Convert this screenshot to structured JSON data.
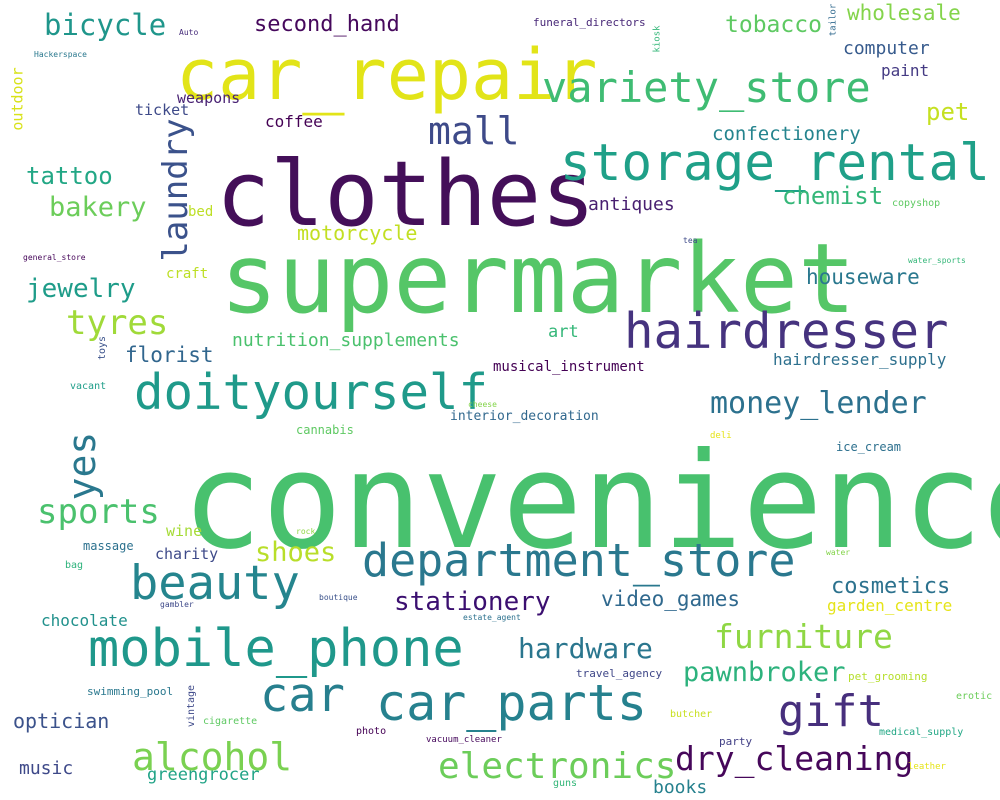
{
  "words": [
    {
      "text": "convenience",
      "color": "#48c16e",
      "rot": 0
    },
    {
      "text": "supermarket",
      "color": "#55c667",
      "rot": 0
    },
    {
      "text": "clothes",
      "color": "#440f59",
      "rot": 0
    },
    {
      "text": "car_repair",
      "color": "#e2e418",
      "rot": 0
    },
    {
      "text": "storage_rental",
      "color": "#1fa088",
      "rot": 0
    },
    {
      "text": "hairdresser",
      "color": "#46337f",
      "rot": 0
    },
    {
      "text": "doityourself",
      "color": "#1f9a8a",
      "rot": 0
    },
    {
      "text": "variety_store",
      "color": "#3fbc73",
      "rot": 0
    },
    {
      "text": "mobile_phone",
      "color": "#1f988b",
      "rot": 0
    },
    {
      "text": "department_store",
      "color": "#2a788e",
      "rot": 0
    },
    {
      "text": "car_parts",
      "color": "#26818e",
      "rot": 0
    },
    {
      "text": "beauty",
      "color": "#25858e",
      "rot": 0
    },
    {
      "text": "car",
      "color": "#277f8e",
      "rot": 0
    },
    {
      "text": "gift",
      "color": "#472f7d",
      "rot": 0
    },
    {
      "text": "mall",
      "color": "#3e4a89",
      "rot": 0
    },
    {
      "text": "alcohol",
      "color": "#7ad151",
      "rot": 0
    },
    {
      "text": "electronics",
      "color": "#6ccd5a",
      "rot": 0
    },
    {
      "text": "dry_cleaning",
      "color": "#46075a",
      "rot": 0
    },
    {
      "text": "furniture",
      "color": "#8fd744",
      "rot": 0
    },
    {
      "text": "money_lender",
      "color": "#2c718e",
      "rot": 0
    },
    {
      "text": "yes",
      "color": "#2a788e",
      "rot": -90
    },
    {
      "text": "laundry",
      "color": "#3b528b",
      "rot": -90
    },
    {
      "text": "sports",
      "color": "#4ac16d",
      "rot": 0
    },
    {
      "text": "tyres",
      "color": "#a0da39",
      "rot": 0
    },
    {
      "text": "bicycle",
      "color": "#1f968b",
      "rot": 0
    },
    {
      "text": "hardware",
      "color": "#2a768e",
      "rot": 0
    },
    {
      "text": "pawnbroker",
      "color": "#2db27d",
      "rot": 0
    },
    {
      "text": "stationery",
      "color": "#3b0f70",
      "rot": 0
    },
    {
      "text": "shoes",
      "color": "#b8de29",
      "rot": 0
    },
    {
      "text": "bakery",
      "color": "#6ccd5a",
      "rot": 0
    },
    {
      "text": "jewelry",
      "color": "#1e9c89",
      "rot": 0
    },
    {
      "text": "video_games",
      "color": "#30698e",
      "rot": 0
    },
    {
      "text": "cosmetics",
      "color": "#2c728e",
      "rot": 0
    },
    {
      "text": "chemist",
      "color": "#35b779",
      "rot": 0
    },
    {
      "text": "tattoo",
      "color": "#22a785",
      "rot": 0
    },
    {
      "text": "tobacco",
      "color": "#5ec962",
      "rot": 0
    },
    {
      "text": "wholesale",
      "color": "#84d44b",
      "rot": 0
    },
    {
      "text": "second_hand",
      "color": "#46085c",
      "rot": 0
    },
    {
      "text": "confectionery",
      "color": "#25848e",
      "rot": 0
    },
    {
      "text": "houseware",
      "color": "#2a788e",
      "rot": 0
    },
    {
      "text": "pet",
      "color": "#c5e021",
      "rot": 0
    },
    {
      "text": "books",
      "color": "#26818e",
      "rot": 0
    },
    {
      "text": "florist",
      "color": "#31668e",
      "rot": 0
    },
    {
      "text": "optician",
      "color": "#3b528b",
      "rot": 0
    },
    {
      "text": "computer",
      "color": "#375b8d",
      "rot": 0
    },
    {
      "text": "antiques",
      "color": "#481f70",
      "rot": 0
    },
    {
      "text": "motorcycle",
      "color": "#c2df23",
      "rot": 0
    },
    {
      "text": "nutrition_supplements",
      "color": "#4ac16d",
      "rot": 0
    },
    {
      "text": "music",
      "color": "#3e4989",
      "rot": 0
    },
    {
      "text": "greengrocer",
      "color": "#20a386",
      "rot": 0
    },
    {
      "text": "hairdresser_supply",
      "color": "#2d708e",
      "rot": 0
    },
    {
      "text": "chocolate",
      "color": "#21918c",
      "rot": 0
    },
    {
      "text": "garden_centre",
      "color": "#e5e419",
      "rot": 0
    },
    {
      "text": "art",
      "color": "#35b779",
      "rot": 0
    },
    {
      "text": "paint",
      "color": "#443a83",
      "rot": 0
    },
    {
      "text": "coffee",
      "color": "#440154",
      "rot": 0
    },
    {
      "text": "weapons",
      "color": "#482173",
      "rot": 0
    },
    {
      "text": "ticket",
      "color": "#3e4a89",
      "rot": 0
    },
    {
      "text": "charity",
      "color": "#3e4a89",
      "rot": 0
    },
    {
      "text": "musical_instrument",
      "color": "#440154",
      "rot": 0
    },
    {
      "text": "interior_decoration",
      "color": "#31688e",
      "rot": 0
    },
    {
      "text": "ice_cream",
      "color": "#2d708e",
      "rot": 0
    },
    {
      "text": "wine",
      "color": "#a5db36",
      "rot": 0
    },
    {
      "text": "cannabis",
      "color": "#5ec962",
      "rot": 0
    },
    {
      "text": "craft",
      "color": "#bddf26",
      "rot": 0
    },
    {
      "text": "outdoor",
      "color": "#d8e219",
      "rot": -90
    },
    {
      "text": "bed",
      "color": "#bddf26",
      "rot": 0
    },
    {
      "text": "massage",
      "color": "#2c718e",
      "rot": 0
    },
    {
      "text": "swimming_pool",
      "color": "#2a788e",
      "rot": 0
    },
    {
      "text": "pet_grooming",
      "color": "#b5de2b",
      "rot": 0
    },
    {
      "text": "travel_agency",
      "color": "#3f4788",
      "rot": 0
    },
    {
      "text": "funeral_directors",
      "color": "#482878",
      "rot": 0
    },
    {
      "text": "photo",
      "color": "#440154",
      "rot": 0
    },
    {
      "text": "party",
      "color": "#424086",
      "rot": 0
    },
    {
      "text": "medical_supply",
      "color": "#22a785",
      "rot": 0
    },
    {
      "text": "butcher",
      "color": "#c8e020",
      "rot": 0
    },
    {
      "text": "erotic",
      "color": "#6ccd5a",
      "rot": 0
    },
    {
      "text": "vacuum_cleaner",
      "color": "#46085c",
      "rot": 0
    },
    {
      "text": "guns",
      "color": "#34b679",
      "rot": 0
    },
    {
      "text": "leather",
      "color": "#e5e419",
      "rot": 0
    },
    {
      "text": "cigarette",
      "color": "#5ec962",
      "rot": 0
    },
    {
      "text": "vintage",
      "color": "#3e4989",
      "rot": -90
    },
    {
      "text": "bag",
      "color": "#2eb37c",
      "rot": 0
    },
    {
      "text": "toys",
      "color": "#3b528b",
      "rot": -90
    },
    {
      "text": "copyshop",
      "color": "#5ec962",
      "rot": 0
    },
    {
      "text": "tea",
      "color": "#3e4a89",
      "rot": 0
    },
    {
      "text": "water_sports",
      "color": "#35b779",
      "rot": 0
    },
    {
      "text": "general_store",
      "color": "#450559",
      "rot": 0
    },
    {
      "text": "Hackerspace",
      "color": "#2a788e",
      "rot": 0
    },
    {
      "text": "Auto",
      "color": "#472d7b",
      "rot": 0
    },
    {
      "text": "kiosk",
      "color": "#35b779",
      "rot": -90
    },
    {
      "text": "tailor",
      "color": "#30698e",
      "rot": -90
    },
    {
      "text": "vacant",
      "color": "#1f9e89",
      "rot": 0
    },
    {
      "text": "cheese",
      "color": "#84d44b",
      "rot": 0
    },
    {
      "text": "deli",
      "color": "#e5e419",
      "rot": 0
    },
    {
      "text": "rock",
      "color": "#8fd744",
      "rot": 0
    },
    {
      "text": "water",
      "color": "#84d44b",
      "rot": 0
    },
    {
      "text": "boutique",
      "color": "#3b528b",
      "rot": 0
    },
    {
      "text": "gambler",
      "color": "#3e4989",
      "rot": 0
    },
    {
      "text": "estate_agent",
      "color": "#2c718e",
      "rot": 0
    }
  ]
}
